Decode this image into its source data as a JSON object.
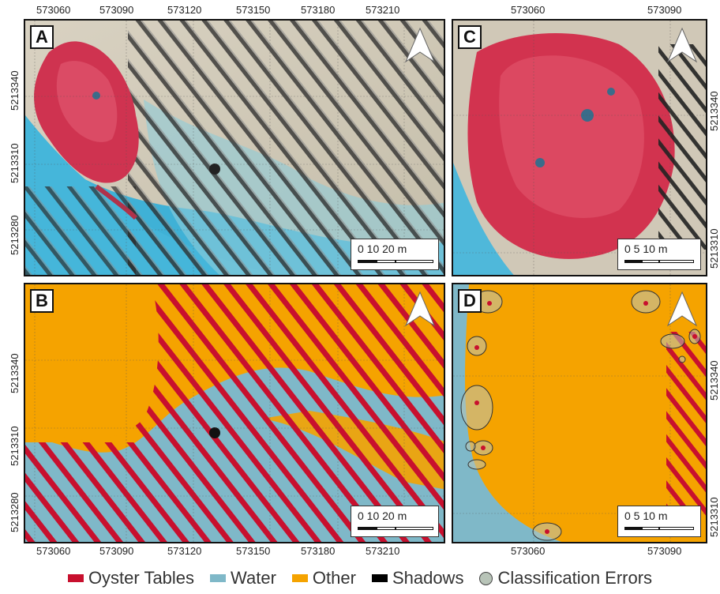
{
  "panels": {
    "A": {
      "label": "A",
      "scale": "0  10  20 m"
    },
    "B": {
      "label": "B",
      "scale": "0  10  20 m"
    },
    "C": {
      "label": "C",
      "scale": "0   5   10 m"
    },
    "D": {
      "label": "D",
      "scale": "0   5   10 m"
    }
  },
  "ticks": {
    "left_x": [
      "573060",
      "573090",
      "573120",
      "573150",
      "573180",
      "573210"
    ],
    "right_x": [
      "573060",
      "573090"
    ],
    "left_y": [
      "5213340",
      "5213310",
      "5213280"
    ],
    "right_y": [
      "5213340",
      "5213310"
    ]
  },
  "legend": [
    {
      "label": "Oyster Tables",
      "color": "#c8102e",
      "shape": "bar"
    },
    {
      "label": "Water",
      "color": "#7fb8c8",
      "shape": "bar"
    },
    {
      "label": "Other",
      "color": "#f5a300",
      "shape": "bar"
    },
    {
      "label": "Shadows",
      "color": "#000000",
      "shape": "bar"
    },
    {
      "label": "Classification Errors",
      "color": "#b8c4b8",
      "shape": "circle"
    }
  ],
  "colors": {
    "oyster": "#c8102e",
    "water": "#7fb8c8",
    "other": "#f5a300",
    "shadow": "#000000",
    "aerial_water": "#4fb6d6",
    "aerial_sand": "#c7c1b0",
    "aerial_veg": "#d23c5a"
  }
}
